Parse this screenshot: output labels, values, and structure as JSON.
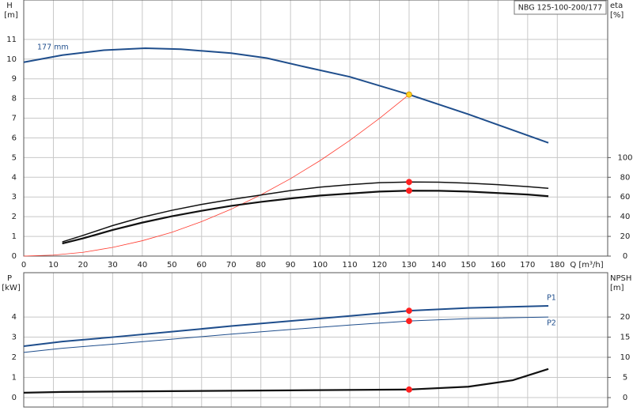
{
  "chart_data": [
    {
      "type": "line",
      "title": "NBG 125-100-200/177",
      "ylabel": "H",
      "yunit": "[m]",
      "y2label": "eta",
      "y2unit": "[%]",
      "xlabel": "Q [m³/h]",
      "xlim": [
        0,
        197
      ],
      "xticks": [
        0,
        10,
        20,
        30,
        40,
        50,
        60,
        70,
        80,
        90,
        100,
        110,
        120,
        130,
        140,
        150,
        160,
        170,
        180
      ],
      "ylim": [
        0,
        13
      ],
      "yticks": [
        0,
        1,
        2,
        3,
        4,
        5,
        6,
        7,
        8,
        9,
        10,
        11
      ],
      "y2lim": [
        0,
        260
      ],
      "y2ticks": [
        0,
        20,
        40,
        60,
        80,
        100
      ],
      "grid": true,
      "series": [
        {
          "name": "177 mm",
          "color": "#1f4e8c",
          "width": 2,
          "x": [
            0,
            13,
            27,
            41,
            53,
            70,
            82,
            95,
            110,
            130,
            150,
            177
          ],
          "values": [
            9.84,
            10.2,
            10.45,
            10.55,
            10.5,
            10.3,
            10.05,
            9.6,
            9.1,
            8.2,
            7.2,
            5.75
          ]
        },
        {
          "color": "#ff3b2f",
          "width": 0.8,
          "x": [
            0,
            10,
            20,
            30,
            40,
            50,
            60,
            70,
            80,
            90,
            100,
            110,
            120,
            130
          ],
          "values": [
            0,
            0.05,
            0.19,
            0.44,
            0.78,
            1.21,
            1.75,
            2.38,
            3.11,
            3.93,
            4.85,
            5.87,
            6.99,
            8.2
          ]
        },
        {
          "color": "#111",
          "width": 1.5,
          "axis": "y2",
          "x": [
            13,
            20,
            30,
            40,
            50,
            60,
            70,
            80,
            90,
            100,
            110,
            120,
            130,
            140,
            150,
            160,
            170,
            177
          ],
          "values": [
            14.4,
            21,
            31,
            39.5,
            46.5,
            52.5,
            57.5,
            62,
            66.5,
            70,
            72.5,
            74.5,
            75.2,
            75,
            74,
            72.5,
            70.5,
            68.8
          ]
        },
        {
          "color": "#111",
          "width": 2.2,
          "axis": "y2",
          "x": [
            13,
            20,
            30,
            40,
            50,
            60,
            70,
            80,
            90,
            100,
            110,
            120,
            130,
            140,
            150,
            160,
            170,
            177
          ],
          "values": [
            12.8,
            18,
            26.5,
            34,
            40.5,
            46,
            51,
            55,
            58.5,
            61.5,
            63.5,
            65.5,
            66.4,
            66.3,
            65.5,
            64,
            62.5,
            60.8
          ]
        }
      ],
      "markers": [
        {
          "x": 130,
          "y": 8.2,
          "color": "#ffd21f"
        },
        {
          "x": 130,
          "y": 75.2,
          "color": "#ff2020",
          "axis": "y2"
        },
        {
          "x": 130,
          "y": 66.4,
          "color": "#ff2020",
          "axis": "y2"
        }
      ]
    },
    {
      "type": "line",
      "ylabel": "P",
      "yunit": "[kW]",
      "y2label": "NPSH",
      "y2unit": "[m]",
      "xlim": [
        0,
        197
      ],
      "xticks": [
        0,
        10,
        20,
        30,
        40,
        50,
        60,
        70,
        80,
        90,
        100,
        110,
        120,
        130,
        140,
        150,
        160,
        170,
        180
      ],
      "ylim": [
        -0.47,
        6.2
      ],
      "yticks": [
        0,
        1,
        2,
        3,
        4
      ],
      "y2lim": [
        -2.35,
        31
      ],
      "y2ticks": [
        0,
        5,
        10,
        15,
        20
      ],
      "grid": true,
      "series": [
        {
          "name": "P1",
          "color": "#1f4e8c",
          "width": 2,
          "x": [
            0,
            13,
            30,
            50,
            70,
            90,
            110,
            130,
            150,
            177
          ],
          "values": [
            2.55,
            2.78,
            3.0,
            3.27,
            3.55,
            3.8,
            4.05,
            4.31,
            4.45,
            4.55
          ]
        },
        {
          "name": "P2",
          "color": "#1f4e8c",
          "width": 1,
          "x": [
            0,
            13,
            30,
            50,
            70,
            90,
            110,
            130,
            150,
            177
          ],
          "values": [
            2.24,
            2.45,
            2.65,
            2.9,
            3.15,
            3.38,
            3.6,
            3.8,
            3.92,
            4.0
          ]
        },
        {
          "color": "#111",
          "width": 2.2,
          "axis": "y2",
          "x": [
            0,
            13,
            50,
            90,
            130,
            150,
            165,
            177
          ],
          "values": [
            1.2,
            1.4,
            1.6,
            1.8,
            2.0,
            2.7,
            4.3,
            7.1
          ]
        }
      ],
      "markers": [
        {
          "x": 130,
          "y": 4.31,
          "color": "#ff2020"
        },
        {
          "x": 130,
          "y": 3.8,
          "color": "#ff2020"
        },
        {
          "x": 130,
          "y": 2.0,
          "color": "#ff2020",
          "axis": "y2"
        }
      ]
    }
  ]
}
